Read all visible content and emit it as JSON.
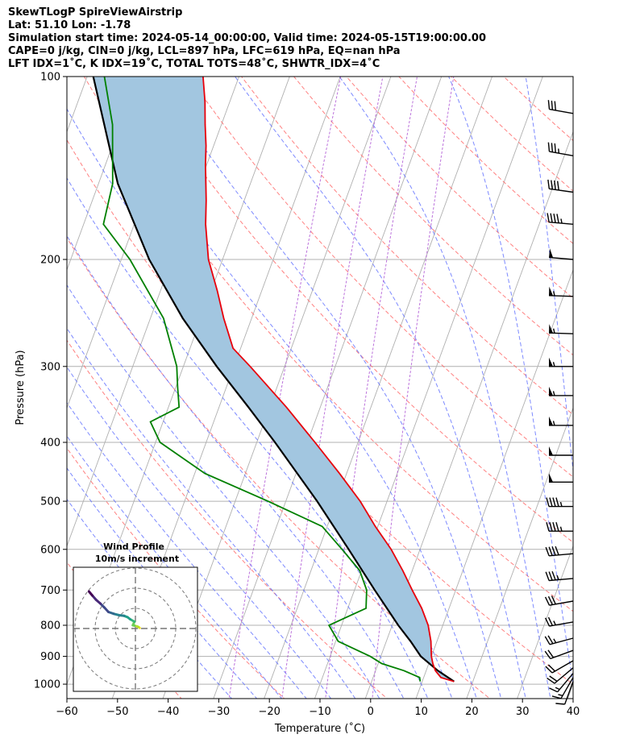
{
  "header": {
    "line1": "SkewTLogP SpireViewAirstrip",
    "line2": "Lat: 51.10   Lon: -1.78",
    "line3": "Simulation start time: 2024-05-14_00:00:00, Valid time: 2024-05-15T19:00:00.00",
    "line4": "CAPE=0 j/kg, CIN=0 j/kg, LCL=897 hPa, LFC=619 hPa, EQ=nan hPa",
    "line5": "LFT IDX=1˚C, K IDX=19˚C, TOTAL TOTS=48˚C, SHWTR_IDX=4˚C"
  },
  "colors": {
    "temperature": "#e8000b",
    "dewpoint": "#008000",
    "parcel": "#000000",
    "shade": "#a2c6e0",
    "dry_adiabat": "#ff6b6b",
    "moist_adiabat": "#5b6bff",
    "mixing_ratio": "#b05ad6",
    "isotherm": "#b0b0b0"
  },
  "chart_data": [
    {
      "type": "line",
      "title": "SkewT Log-P",
      "xlabel": "Temperature (˚C)",
      "ylabel": "Pressure (hPa)",
      "xlim": [
        -60,
        40
      ],
      "ylim": [
        1050,
        100
      ],
      "x_ticks": [
        -60,
        -50,
        -40,
        -30,
        -20,
        -10,
        0,
        10,
        20,
        30,
        40
      ],
      "x_tick_labels": [
        "−60",
        "−50",
        "−40",
        "−30",
        "−20",
        "−10",
        "0",
        "10",
        "20",
        "30",
        "40"
      ],
      "y_ticks": [
        100,
        200,
        300,
        400,
        500,
        600,
        700,
        800,
        900,
        1000
      ],
      "y_tick_labels": [
        "100",
        "200",
        "300",
        "400",
        "500",
        "600",
        "700",
        "800",
        "900",
        "1000"
      ],
      "skew_deg_per_decade": 44,
      "series": [
        {
          "name": "Temperature",
          "pressure": [
            990,
            975,
            950,
            925,
            900,
            850,
            800,
            750,
            700,
            650,
            600,
            550,
            500,
            450,
            400,
            350,
            300,
            280,
            250,
            225,
            200,
            175,
            160,
            150,
            140,
            130,
            120,
            110,
            100
          ],
          "values": [
            16.3,
            13.4,
            11.8,
            10.8,
            10.0,
            8.8,
            7.1,
            4.6,
            1.4,
            -1.9,
            -5.7,
            -10.5,
            -15.3,
            -21.4,
            -28.5,
            -36.7,
            -46.8,
            -51.5,
            -55.5,
            -58.8,
            -62.8,
            -65.9,
            -67.5,
            -68.8,
            -70.2,
            -71.5,
            -73.2,
            -74.9,
            -77.1
          ]
        },
        {
          "name": "Dewpoint",
          "pressure": [
            990,
            975,
            950,
            925,
            900,
            850,
            800,
            750,
            700,
            650,
            600,
            550,
            500,
            450,
            400,
            370,
            350,
            325,
            300,
            250,
            200,
            175,
            150,
            120,
            100
          ],
          "values": [
            9.6,
            9.2,
            5.6,
            0.7,
            -2.1,
            -9.5,
            -12.5,
            -6.4,
            -7.6,
            -10.4,
            -15.4,
            -21.0,
            -33.5,
            -48.0,
            -59.1,
            -62.5,
            -57.9,
            -59.6,
            -61.3,
            -67.4,
            -78.3,
            -86.1,
            -87.2,
            -91.5,
            -96.6
          ]
        },
        {
          "name": "Parcel",
          "pressure": [
            990,
            950,
            900,
            850,
            800,
            700,
            600,
            500,
            400,
            350,
            300,
            250,
            200,
            150,
            100
          ],
          "values": [
            16.3,
            12.3,
            7.9,
            4.8,
            1.2,
            -6.0,
            -14.1,
            -23.8,
            -36.4,
            -44.2,
            -53.4,
            -63.6,
            -74.5,
            -86.2,
            -98.8
          ]
        }
      ]
    },
    {
      "type": "line",
      "title": "Wind Profile",
      "subtitle": "10m/s increment",
      "ring_speeds_ms": [
        10,
        20,
        30
      ],
      "series": [
        {
          "name": "Hodograph",
          "u": [
            2.1,
            1.6,
            0.9,
            -0.4,
            -1.3,
            -0.5,
            -2.6,
            -3.9,
            -5.6,
            -8.1,
            -10.7,
            -13.4,
            -15.5,
            -17.4,
            -19.5,
            -21.4,
            -23.1
          ],
          "v": [
            0.3,
            0.7,
            1.0,
            1.4,
            1.6,
            3.4,
            4.6,
            5.6,
            6.3,
            6.6,
            7.3,
            8.2,
            10.5,
            12.4,
            14.2,
            16.4,
            18.4
          ]
        }
      ]
    }
  ],
  "wind_barbs": {
    "pressure": [
      990,
      975,
      960,
      940,
      915,
      880,
      840,
      790,
      730,
      670,
      610,
      560,
      510,
      465,
      420,
      375,
      335,
      300,
      265,
      230,
      200,
      175,
      155,
      135,
      115
    ],
    "speed_kt": [
      10,
      15,
      15,
      20,
      20,
      20,
      25,
      25,
      30,
      35,
      40,
      45,
      45,
      50,
      50,
      55,
      55,
      55,
      55,
      55,
      50,
      45,
      40,
      35,
      30
    ],
    "direction_deg": [
      200,
      210,
      220,
      230,
      240,
      250,
      255,
      260,
      260,
      265,
      265,
      270,
      270,
      270,
      270,
      270,
      270,
      270,
      272,
      272,
      275,
      275,
      278,
      280,
      280
    ]
  }
}
